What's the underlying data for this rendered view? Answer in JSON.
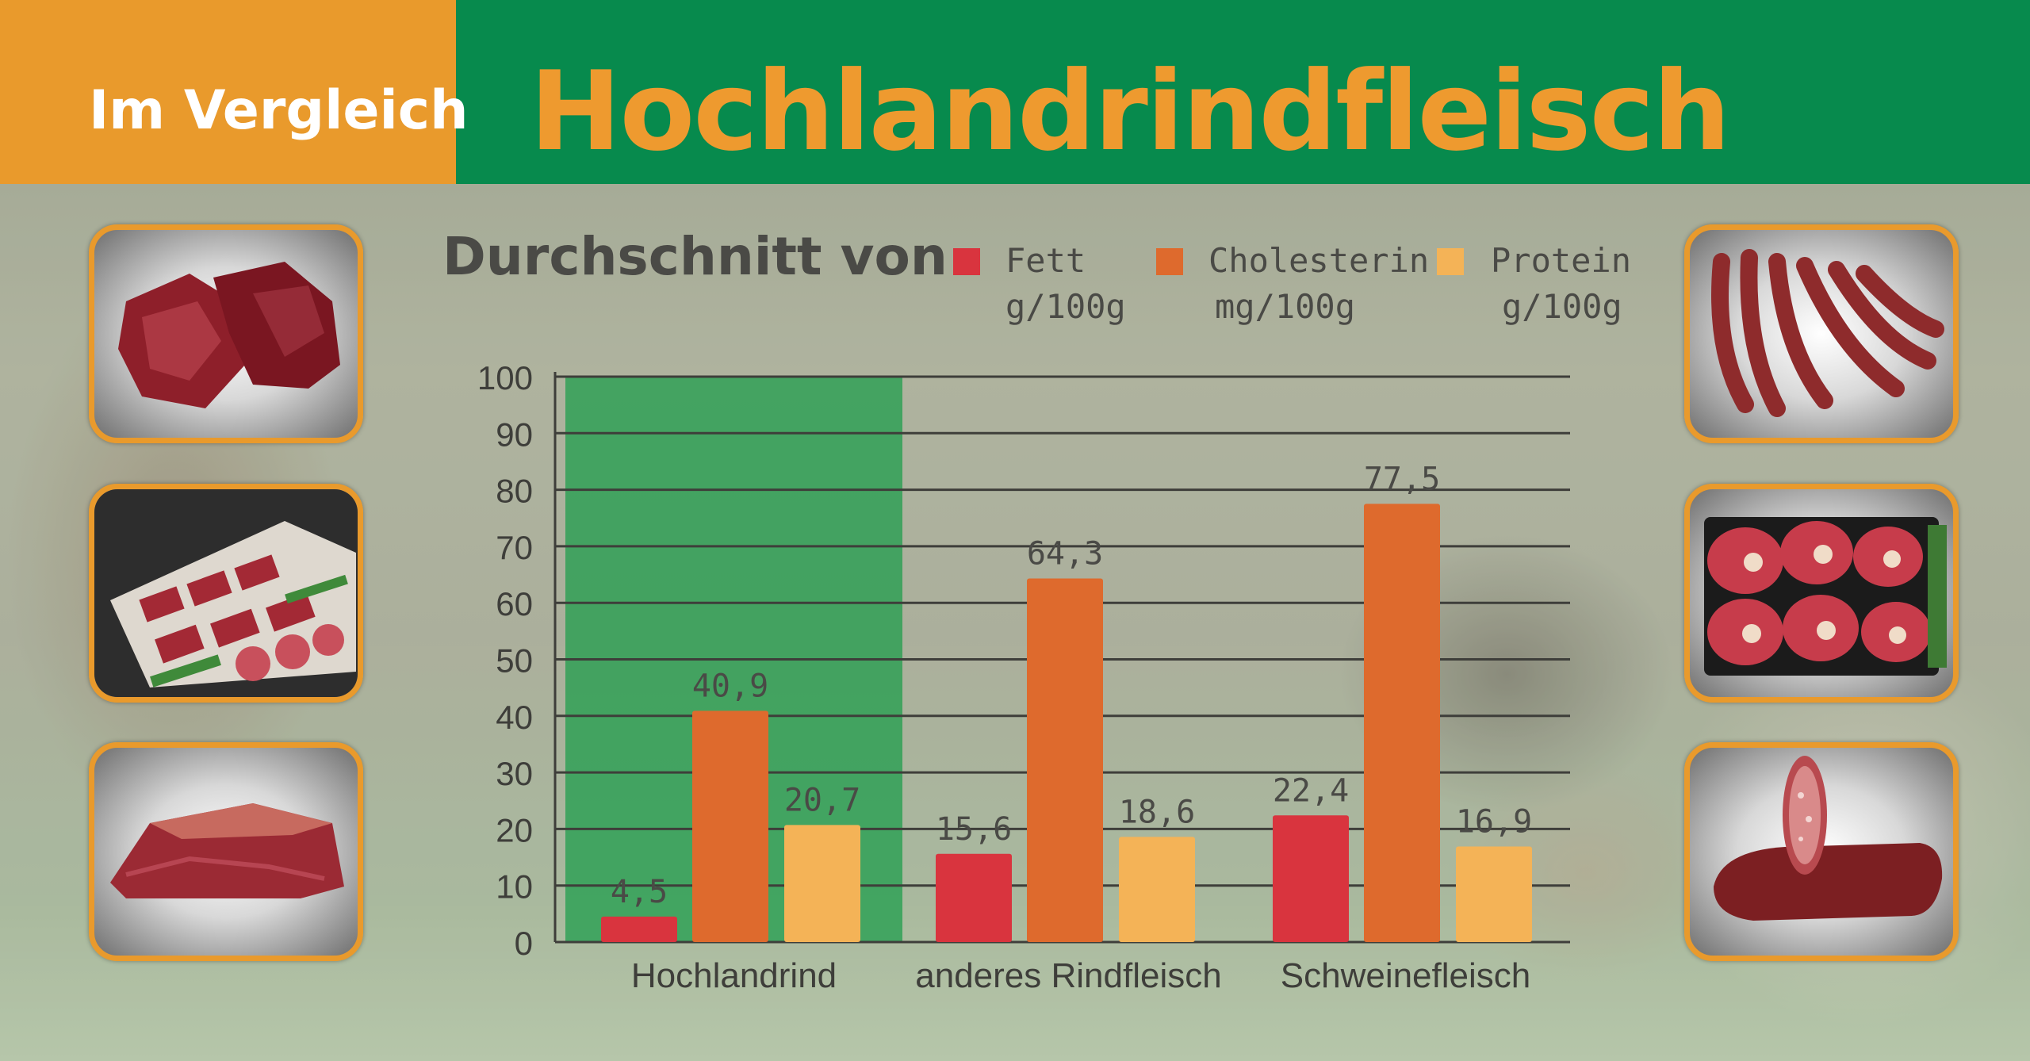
{
  "header": {
    "label": "Im Vergleich",
    "title": "Hochlandrindfleisch"
  },
  "colors": {
    "orange_header": "#e99a2c",
    "green_header": "#078a4d",
    "fett": "#d9343e",
    "cholesterin": "#de6a2d",
    "protein": "#f4b357",
    "highlight": "#1a9c4a"
  },
  "chart_data": {
    "type": "bar",
    "title": "Durchschnitt von",
    "categories": [
      "Hochlandrind",
      "anderes Rindfleisch",
      "Schweinefleisch"
    ],
    "series": [
      {
        "name": "Fett",
        "unit": "g/100g",
        "values": [
          4.5,
          15.6,
          22.4
        ],
        "labels": [
          "4,5",
          "15,6",
          "22,4"
        ]
      },
      {
        "name": "Cholesterin",
        "unit": "mg/100g",
        "values": [
          40.9,
          64.3,
          77.5
        ],
        "labels": [
          "40,9",
          "64,3",
          "77,5"
        ]
      },
      {
        "name": "Protein",
        "unit": "g/100g",
        "values": [
          20.7,
          18.6,
          16.9
        ],
        "labels": [
          "20,7",
          "18,6",
          "16,9"
        ]
      }
    ],
    "ylim": [
      0,
      100
    ],
    "yticks": [
      "0",
      "10",
      "20",
      "30",
      "40",
      "50",
      "60",
      "70",
      "80",
      "90",
      "100"
    ],
    "grid": true,
    "legend_position": "top",
    "highlighted_category": "Hochlandrind"
  },
  "photos": {
    "left": [
      "raw-beef-icon",
      "meat-counter-icon",
      "beef-roast-icon"
    ],
    "right": [
      "sausages-icon",
      "beef-shank-icon",
      "salami-icon"
    ]
  }
}
